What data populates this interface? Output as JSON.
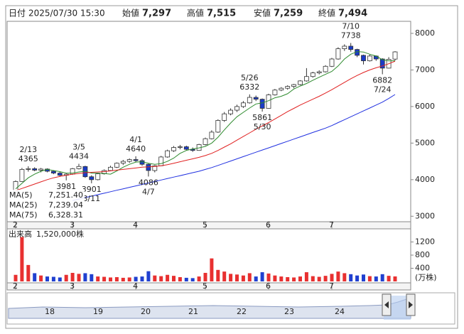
{
  "header": {
    "items": [
      {
        "label": "日付",
        "value": "2025/07/30 15:30"
      },
      {
        "label": "始値",
        "value": "7,297"
      },
      {
        "label": "高値",
        "value": "7,515"
      },
      {
        "label": "安値",
        "value": "7,259"
      },
      {
        "label": "終値",
        "value": "7,494"
      }
    ]
  },
  "chart_data": [
    {
      "type": "candlestick",
      "categories": [
        "2",
        null,
        null,
        null,
        null,
        null,
        null,
        null,
        null,
        "3",
        null,
        null,
        null,
        null,
        null,
        null,
        null,
        null,
        null,
        "4",
        null,
        null,
        null,
        null,
        null,
        null,
        null,
        null,
        null,
        null,
        "5",
        null,
        null,
        null,
        null,
        null,
        null,
        null,
        null,
        null,
        "6",
        null,
        null,
        null,
        null,
        null,
        null,
        null,
        null,
        null,
        "7",
        null,
        null,
        null,
        null,
        null,
        null,
        null,
        null,
        null,
        null
      ],
      "open": [
        3650,
        3950,
        4280,
        4300,
        4260,
        4290,
        4230,
        4180,
        4120,
        4150,
        4300,
        4360,
        4080,
        4000,
        4160,
        4250,
        4340,
        4450,
        4500,
        4550,
        4520,
        4420,
        4250,
        4380,
        4620,
        4790,
        4880,
        4900,
        4830,
        4800,
        4960,
        5120,
        5300,
        5620,
        5800,
        5900,
        6000,
        6100,
        6250,
        6200,
        5950,
        6320,
        6450,
        6500,
        6550,
        6600,
        6700,
        6820,
        6920,
        6950,
        7100,
        7300,
        7580,
        7650,
        7560,
        7400,
        7250,
        7380,
        7300,
        7050,
        7297
      ],
      "high": [
        3980,
        4320,
        4365,
        4340,
        4320,
        4310,
        4260,
        4210,
        4180,
        4320,
        4434,
        4380,
        4120,
        4180,
        4280,
        4380,
        4470,
        4540,
        4580,
        4640,
        4560,
        4440,
        4400,
        4650,
        4820,
        4920,
        4950,
        4930,
        4880,
        4980,
        5150,
        5350,
        5650,
        5850,
        5950,
        6050,
        6150,
        6332,
        6300,
        6220,
        6350,
        6480,
        6530,
        6580,
        6620,
        6720,
        7050,
        6950,
        6990,
        7130,
        7330,
        7620,
        7700,
        7738,
        7580,
        7420,
        7420,
        7400,
        7320,
        7350,
        7515
      ],
      "low": [
        3600,
        3940,
        4220,
        4230,
        4200,
        4200,
        4150,
        4080,
        3981,
        4130,
        4280,
        4050,
        3901,
        3980,
        4140,
        4230,
        4320,
        4400,
        4460,
        4480,
        4380,
        4086,
        4200,
        4370,
        4600,
        4760,
        4830,
        4800,
        4760,
        4790,
        4940,
        5100,
        5280,
        5580,
        5760,
        5850,
        5960,
        6080,
        6150,
        5861,
        5940,
        6300,
        6420,
        6460,
        6500,
        6580,
        6680,
        6790,
        6880,
        6930,
        7080,
        7280,
        7520,
        7500,
        7350,
        7150,
        7230,
        7250,
        6882,
        7040,
        7259
      ],
      "close": [
        3950,
        4280,
        4300,
        4260,
        4290,
        4230,
        4180,
        4120,
        4150,
        4300,
        4360,
        4080,
        4000,
        4160,
        4250,
        4340,
        4450,
        4500,
        4550,
        4520,
        4420,
        4250,
        4380,
        4620,
        4790,
        4880,
        4900,
        4830,
        4800,
        4960,
        5120,
        5300,
        5620,
        5800,
        5900,
        6000,
        6100,
        6250,
        6200,
        5950,
        6320,
        6450,
        6500,
        6550,
        6600,
        6700,
        6820,
        6920,
        6950,
        7100,
        7300,
        7580,
        7650,
        7560,
        7400,
        7250,
        7380,
        7300,
        7050,
        7290,
        7494
      ],
      "up_color": "#ffffff",
      "down_color": "#1a3cc8",
      "series": [
        {
          "name": "MA(5)",
          "color": "#2e8b2e",
          "values": [
            3750,
            3900,
            4050,
            4150,
            4230,
            4280,
            4250,
            4220,
            4180,
            4180,
            4210,
            4230,
            4180,
            4180,
            4170,
            4150,
            4240,
            4340,
            4420,
            4480,
            4490,
            4450,
            4420,
            4440,
            4500,
            4590,
            4720,
            4800,
            4840,
            4870,
            4910,
            5000,
            5160,
            5360,
            5550,
            5720,
            5840,
            5960,
            6070,
            6100,
            6160,
            6240,
            6280,
            6350,
            6480,
            6560,
            6630,
            6720,
            6800,
            6880,
            6960,
            7110,
            7300,
            7430,
            7500,
            7490,
            7430,
            7380,
            7280,
            7250,
            7251.4
          ],
          "value_labels": [
            null,
            null,
            null,
            null,
            null,
            null,
            null,
            null,
            null,
            null,
            null,
            null,
            null,
            null,
            null,
            null,
            null,
            null,
            null,
            null,
            null,
            null,
            null,
            null,
            null,
            null,
            null,
            null,
            null,
            null,
            null,
            null,
            null,
            null,
            null,
            null,
            null,
            null,
            null,
            null,
            null,
            null,
            null,
            null,
            null,
            null,
            null,
            null,
            null,
            null,
            null,
            null,
            null,
            null,
            null,
            null,
            null,
            null,
            null,
            null,
            "7,251.40"
          ]
        },
        {
          "name": "MA(25)",
          "color": "#e02020",
          "values": [
            3700,
            3760,
            3820,
            3880,
            3940,
            4000,
            4050,
            4090,
            4120,
            4150,
            4170,
            4190,
            4200,
            4210,
            4220,
            4240,
            4260,
            4280,
            4300,
            4320,
            4340,
            4350,
            4360,
            4380,
            4410,
            4450,
            4490,
            4530,
            4570,
            4610,
            4660,
            4720,
            4800,
            4890,
            4980,
            5080,
            5180,
            5280,
            5380,
            5470,
            5560,
            5660,
            5760,
            5860,
            5950,
            6040,
            6120,
            6200,
            6280,
            6370,
            6460,
            6560,
            6660,
            6760,
            6850,
            6930,
            7000,
            7060,
            7110,
            7170,
            7239.04
          ],
          "value_labels": [
            null,
            null,
            null,
            null,
            null,
            null,
            null,
            null,
            null,
            null,
            null,
            null,
            null,
            null,
            null,
            null,
            null,
            null,
            null,
            null,
            null,
            null,
            null,
            null,
            null,
            null,
            null,
            null,
            null,
            null,
            null,
            null,
            null,
            null,
            null,
            null,
            null,
            null,
            null,
            null,
            null,
            null,
            null,
            null,
            null,
            null,
            null,
            null,
            null,
            null,
            null,
            null,
            null,
            null,
            null,
            null,
            null,
            null,
            null,
            null,
            "7,239.04"
          ]
        },
        {
          "name": "MA(75)",
          "color": "#2030e0",
          "values": [
            null,
            null,
            null,
            null,
            null,
            null,
            null,
            null,
            null,
            3430,
            3470,
            3510,
            3550,
            3590,
            3630,
            3670,
            3710,
            3750,
            3790,
            3830,
            3870,
            3910,
            3950,
            3990,
            4030,
            4070,
            4110,
            4150,
            4190,
            4230,
            4280,
            4330,
            4390,
            4450,
            4510,
            4570,
            4630,
            4690,
            4750,
            4810,
            4870,
            4930,
            4990,
            5050,
            5110,
            5170,
            5230,
            5290,
            5350,
            5410,
            5480,
            5560,
            5640,
            5720,
            5800,
            5880,
            5960,
            6040,
            6120,
            6220,
            6328.31
          ],
          "value_labels": [
            null,
            null,
            null,
            null,
            null,
            null,
            null,
            null,
            null,
            null,
            null,
            null,
            null,
            null,
            null,
            null,
            null,
            null,
            null,
            null,
            null,
            null,
            null,
            null,
            null,
            null,
            null,
            null,
            null,
            null,
            null,
            null,
            null,
            null,
            null,
            null,
            null,
            null,
            null,
            null,
            null,
            null,
            null,
            null,
            null,
            null,
            null,
            null,
            null,
            null,
            null,
            null,
            null,
            null,
            null,
            null,
            null,
            null,
            null,
            null,
            "6,328.31"
          ]
        }
      ],
      "ylim": [
        2850,
        8330
      ],
      "yticks": [
        3000,
        4000,
        5000,
        6000,
        7000,
        8000
      ],
      "annotations": [
        {
          "date": "2/13",
          "value": 4365
        },
        {
          "date": "3/5",
          "value": 4434
        },
        {
          "value": 3981
        },
        {
          "date": "3/11",
          "value": 3901
        },
        {
          "date": "4/1",
          "value": 4640
        },
        {
          "date": "4/7",
          "value": 4086
        },
        {
          "date": "5/26",
          "value": 6332
        },
        {
          "date": "5/30",
          "value": 5861
        },
        {
          "date": "7/10",
          "value": 7738
        },
        {
          "date": "7/24",
          "value": 6882
        }
      ]
    },
    {
      "type": "bar",
      "title": "出来高",
      "subtitle": "1,520,000株",
      "unit": "(万株)",
      "categories": [
        "2",
        null,
        null,
        null,
        null,
        null,
        null,
        null,
        null,
        "3",
        null,
        null,
        null,
        null,
        null,
        null,
        null,
        null,
        null,
        "4",
        null,
        null,
        null,
        null,
        null,
        null,
        null,
        null,
        null,
        null,
        "5",
        null,
        null,
        null,
        null,
        null,
        null,
        null,
        null,
        null,
        "6",
        null,
        null,
        null,
        null,
        null,
        null,
        null,
        null,
        null,
        "7",
        null,
        null,
        null,
        null,
        null,
        null,
        null,
        null,
        null,
        null
      ],
      "values": [
        200,
        1350,
        500,
        250,
        180,
        150,
        140,
        120,
        200,
        260,
        230,
        250,
        220,
        150,
        140,
        120,
        130,
        110,
        120,
        140,
        150,
        310,
        180,
        160,
        200,
        170,
        130,
        110,
        100,
        150,
        260,
        700,
        350,
        300,
        230,
        210,
        180,
        250,
        150,
        280,
        240,
        180,
        150,
        130,
        120,
        150,
        280,
        160,
        140,
        170,
        230,
        300,
        250,
        220,
        180,
        210,
        160,
        150,
        220,
        170,
        152
      ],
      "up_color": "#e83030",
      "down_color": "#2040d0",
      "ylim": [
        0,
        1600
      ],
      "yticks": [
        400,
        800,
        1200
      ]
    }
  ],
  "navigator": {
    "labels": [
      "18",
      "19",
      "20",
      "21",
      "22",
      "23",
      "24"
    ]
  }
}
